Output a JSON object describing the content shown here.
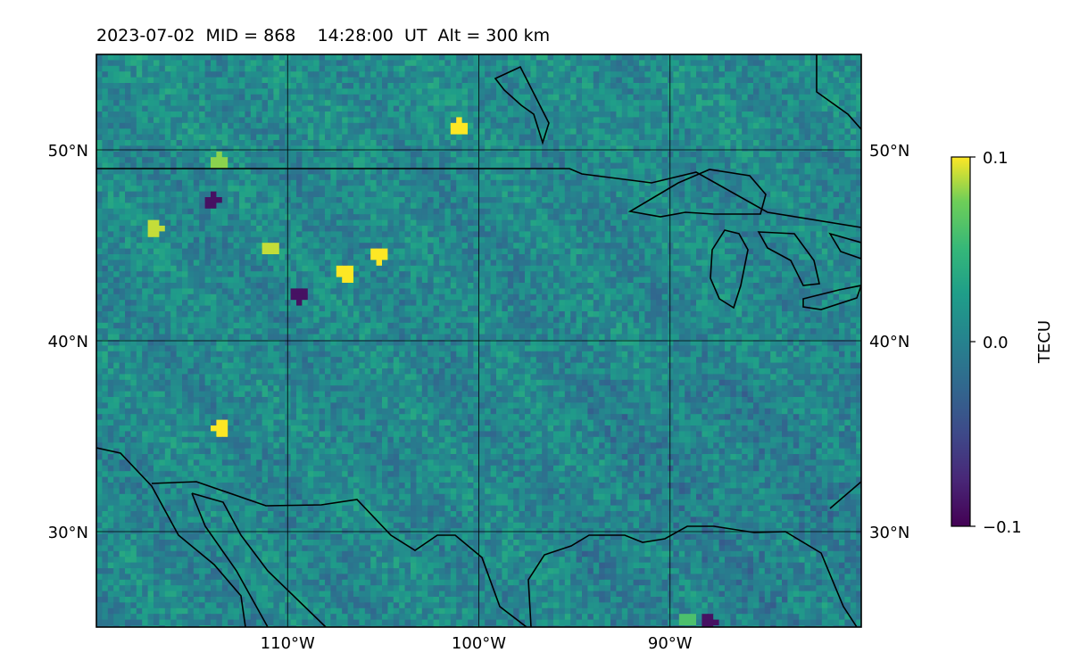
{
  "title": "2023-07-02  MID = 868    14:28:00  UT  Alt = 300 km",
  "chart_data": {
    "type": "heatmap",
    "projection": "lat-lon map",
    "xlim": [
      -120,
      -80
    ],
    "ylim": [
      25,
      55
    ],
    "x_ticks": [
      {
        "value": -110,
        "label": "110°W"
      },
      {
        "value": -100,
        "label": "100°W"
      },
      {
        "value": -90,
        "label": "90°W"
      }
    ],
    "y_ticks": [
      {
        "value": 30,
        "label": "30°N"
      },
      {
        "value": 40,
        "label": "40°N"
      },
      {
        "value": 50,
        "label": "50°N"
      }
    ],
    "grid": true,
    "colormap": "viridis",
    "colorbar": {
      "label": "TECU",
      "vmin": -0.1,
      "vmax": 0.1,
      "ticks": [
        {
          "value": 0.1,
          "label": "0.1"
        },
        {
          "value": 0.0,
          "label": "0.0"
        },
        {
          "value": -0.1,
          "label": "−0.1"
        }
      ]
    },
    "value_range_observed": [
      -0.1,
      0.1
    ],
    "notes_features": [
      {
        "lon": -101,
        "lat": 51.2,
        "value": 0.1
      },
      {
        "lon": -113.5,
        "lat": 49.4,
        "value": 0.08
      },
      {
        "lon": -117,
        "lat": 46,
        "value": 0.09
      },
      {
        "lon": -111,
        "lat": 44.9,
        "value": 0.09
      },
      {
        "lon": -107,
        "lat": 43.6,
        "value": 0.1
      },
      {
        "lon": -105.2,
        "lat": 44.6,
        "value": 0.1
      },
      {
        "lon": -113.5,
        "lat": 35.6,
        "value": 0.1
      },
      {
        "lon": -109.5,
        "lat": 42.5,
        "value": -0.09
      },
      {
        "lon": -114,
        "lat": 47.3,
        "value": -0.09
      },
      {
        "lon": -88,
        "lat": 25.5,
        "value": -0.09
      },
      {
        "lon": -89,
        "lat": 25.6,
        "value": 0.06
      }
    ]
  }
}
